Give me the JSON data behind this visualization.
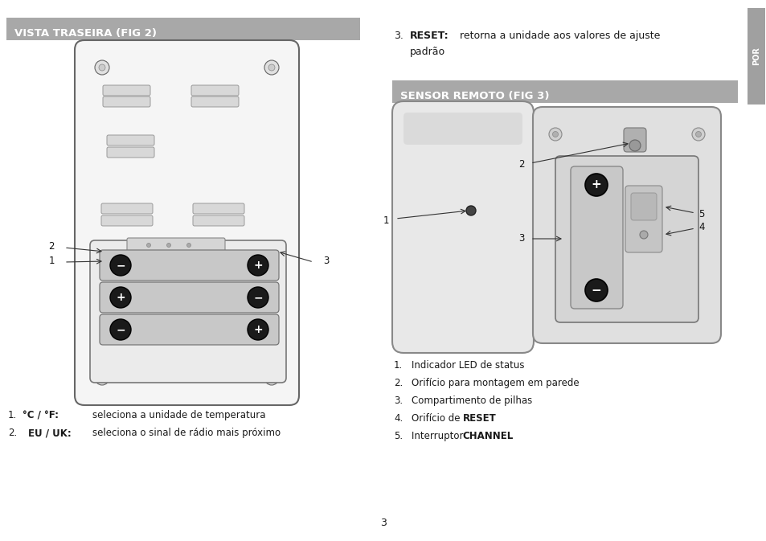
{
  "title1": "VISTA TRASEIRA (FIG 2)",
  "title2": "SENSOR REMOTO (FIG 3)",
  "header_bg": "#a8a8a8",
  "header_text": "#ffffff",
  "page_bg": "#ffffff",
  "body_text_color": "#1a1a1a",
  "sidebar_text": "POR",
  "sidebar_bg": "#a0a0a0",
  "page_number": "3",
  "device_fill": "#f5f5f5",
  "device_edge": "#666666",
  "slot_fill": "#d8d8d8",
  "slot_edge": "#999999",
  "batt_fill": "#c8c8c8",
  "batt_edge": "#777777",
  "terminal_fill": "#1a1a1a",
  "terminal_text": "#ffffff"
}
